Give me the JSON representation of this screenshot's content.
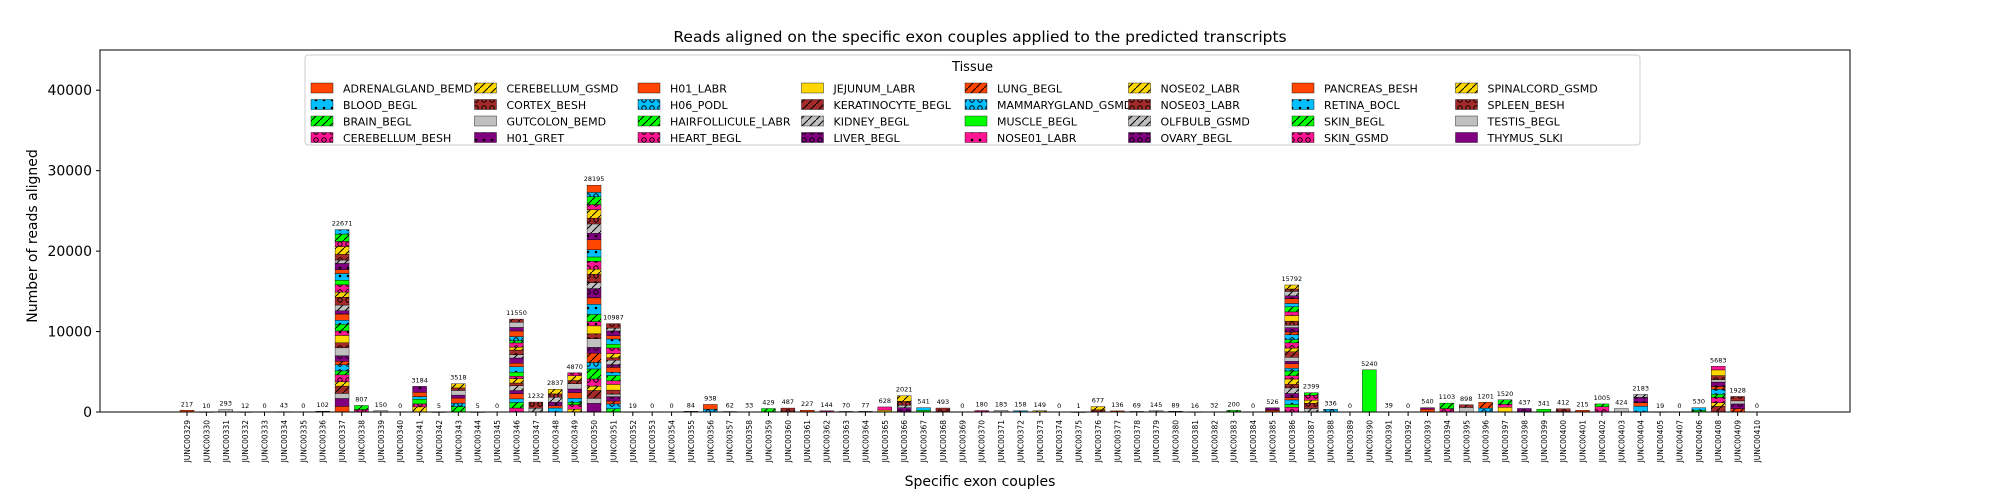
{
  "chart_data": {
    "type": "bar",
    "stacked": true,
    "title": "Reads aligned on the specific exon couples applied to the predicted transcripts",
    "xlabel": "Specific exon couples",
    "ylabel": "Number of reads aligned",
    "ylim": [
      0,
      45000
    ],
    "yticks": [
      0,
      10000,
      20000,
      30000,
      40000
    ],
    "grid": false,
    "legend": {
      "title": "Tissue",
      "placement": "top-center",
      "columns": 8
    },
    "series": [
      {
        "name": "ADRENALGLAND_BEMD",
        "color": "#ff4500",
        "hatch": "none"
      },
      {
        "name": "BLOOD_BEGL",
        "color": "#00bfff",
        "hatch": "dot"
      },
      {
        "name": "BRAIN_BEGL",
        "color": "#00ff00",
        "hatch": "slash"
      },
      {
        "name": "CEREBELLUM_BESH",
        "color": "#ff1493",
        "hatch": "ring"
      },
      {
        "name": "CEREBELLUM_GSMD",
        "color": "#ffd700",
        "hatch": "slash"
      },
      {
        "name": "CORTEX_BESH",
        "color": "#a52a2a",
        "hatch": "ring"
      },
      {
        "name": "GUTCOLON_BEMD",
        "color": "#c0c0c0",
        "hatch": "none"
      },
      {
        "name": "H01_GRET",
        "color": "#800080",
        "hatch": "dot"
      },
      {
        "name": "H01_LABR",
        "color": "#ff4500",
        "hatch": "none"
      },
      {
        "name": "H06_PODL",
        "color": "#00bfff",
        "hatch": "ring"
      },
      {
        "name": "HAIRFOLLICULE_LABR",
        "color": "#00ff00",
        "hatch": "slash"
      },
      {
        "name": "HEART_BEGL",
        "color": "#ff1493",
        "hatch": "ring"
      },
      {
        "name": "JEJUNUM_LABR",
        "color": "#ffd700",
        "hatch": "none"
      },
      {
        "name": "KERATINOCYTE_BEGL",
        "color": "#a52a2a",
        "hatch": "slash"
      },
      {
        "name": "KIDNEY_BEGL",
        "color": "#c0c0c0",
        "hatch": "slash"
      },
      {
        "name": "LIVER_BEGL",
        "color": "#800080",
        "hatch": "ring"
      },
      {
        "name": "LUNG_BEGL",
        "color": "#ff4500",
        "hatch": "slash"
      },
      {
        "name": "MAMMARYGLAND_GSMD",
        "color": "#00bfff",
        "hatch": "ring"
      },
      {
        "name": "MUSCLE_BEGL",
        "color": "#00ff00",
        "hatch": "none"
      },
      {
        "name": "NOSE01_LABR",
        "color": "#ff1493",
        "hatch": "dot"
      },
      {
        "name": "NOSE02_LABR",
        "color": "#ffd700",
        "hatch": "slash"
      },
      {
        "name": "NOSE03_LABR",
        "color": "#a52a2a",
        "hatch": "ring"
      },
      {
        "name": "OLFBULB_GSMD",
        "color": "#c0c0c0",
        "hatch": "slash"
      },
      {
        "name": "OVARY_BEGL",
        "color": "#800080",
        "hatch": "ring"
      },
      {
        "name": "PANCREAS_BESH",
        "color": "#ff4500",
        "hatch": "none"
      },
      {
        "name": "RETINA_BOCL",
        "color": "#00bfff",
        "hatch": "dot"
      },
      {
        "name": "SKIN_BEGL",
        "color": "#00ff00",
        "hatch": "slash"
      },
      {
        "name": "SKIN_GSMD",
        "color": "#ff1493",
        "hatch": "ring"
      },
      {
        "name": "SPINALCORD_GSMD",
        "color": "#ffd700",
        "hatch": "slash"
      },
      {
        "name": "SPLEEN_BESH",
        "color": "#a52a2a",
        "hatch": "ring"
      },
      {
        "name": "TESTIS_BEGL",
        "color": "#c0c0c0",
        "hatch": "none"
      },
      {
        "name": "THYMUS_SLKI",
        "color": "#800080",
        "hatch": "none"
      }
    ],
    "bars": [
      {
        "category": "JUNC00329",
        "total": 217
      },
      {
        "category": "JUNC00330",
        "total": 10
      },
      {
        "category": "JUNC00331",
        "total": 293
      },
      {
        "category": "JUNC00332",
        "total": 12
      },
      {
        "category": "JUNC00333",
        "total": 0
      },
      {
        "category": "JUNC00334",
        "total": 43
      },
      {
        "category": "JUNC00335",
        "total": 0
      },
      {
        "category": "JUNC00336",
        "total": 102
      },
      {
        "category": "JUNC00337",
        "total": 22671
      },
      {
        "category": "JUNC00338",
        "total": 807
      },
      {
        "category": "JUNC00339",
        "total": 150
      },
      {
        "category": "JUNC00340",
        "total": 0
      },
      {
        "category": "JUNC00341",
        "total": 3184
      },
      {
        "category": "JUNC00342",
        "total": 5
      },
      {
        "category": "JUNC00343",
        "total": 3518
      },
      {
        "category": "JUNC00344",
        "total": 5
      },
      {
        "category": "JUNC00345",
        "total": 0
      },
      {
        "category": "JUNC00346",
        "total": 11550
      },
      {
        "category": "JUNC00347",
        "total": 1232
      },
      {
        "category": "JUNC00348",
        "total": 2837
      },
      {
        "category": "JUNC00349",
        "total": 4870
      },
      {
        "category": "JUNC00350",
        "total": 28195
      },
      {
        "category": "JUNC00351",
        "total": 10987
      },
      {
        "category": "JUNC00352",
        "total": 19
      },
      {
        "category": "JUNC00353",
        "total": 0
      },
      {
        "category": "JUNC00354",
        "total": 0
      },
      {
        "category": "JUNC00355",
        "total": 84
      },
      {
        "category": "JUNC00356",
        "total": 938
      },
      {
        "category": "JUNC00357",
        "total": 62
      },
      {
        "category": "JUNC00358",
        "total": 33
      },
      {
        "category": "JUNC00359",
        "total": 429
      },
      {
        "category": "JUNC00360",
        "total": 487
      },
      {
        "category": "JUNC00361",
        "total": 227
      },
      {
        "category": "JUNC00362",
        "total": 144
      },
      {
        "category": "JUNC00363",
        "total": 70
      },
      {
        "category": "JUNC00364",
        "total": 77
      },
      {
        "category": "JUNC00365",
        "total": 628
      },
      {
        "category": "JUNC00366",
        "total": 2021
      },
      {
        "category": "JUNC00367",
        "total": 541
      },
      {
        "category": "JUNC00368",
        "total": 493
      },
      {
        "category": "JUNC00369",
        "total": 0
      },
      {
        "category": "JUNC00370",
        "total": 180
      },
      {
        "category": "JUNC00371",
        "total": 183
      },
      {
        "category": "JUNC00372",
        "total": 158
      },
      {
        "category": "JUNC00373",
        "total": 149
      },
      {
        "category": "JUNC00374",
        "total": 0
      },
      {
        "category": "JUNC00375",
        "total": 1
      },
      {
        "category": "JUNC00376",
        "total": 677
      },
      {
        "category": "JUNC00377",
        "total": 136
      },
      {
        "category": "JUNC00378",
        "total": 69
      },
      {
        "category": "JUNC00379",
        "total": 145
      },
      {
        "category": "JUNC00380",
        "total": 89
      },
      {
        "category": "JUNC00381",
        "total": 16
      },
      {
        "category": "JUNC00382",
        "total": 32
      },
      {
        "category": "JUNC00383",
        "total": 200
      },
      {
        "category": "JUNC00384",
        "total": 0
      },
      {
        "category": "JUNC00385",
        "total": 526
      },
      {
        "category": "JUNC00386",
        "total": 15792
      },
      {
        "category": "JUNC00387",
        "total": 2399
      },
      {
        "category": "JUNC00388",
        "total": 336
      },
      {
        "category": "JUNC00389",
        "total": 0
      },
      {
        "category": "JUNC00390",
        "total": 5240,
        "dominant": "MUSCLE_BEGL"
      },
      {
        "category": "JUNC00391",
        "total": 39
      },
      {
        "category": "JUNC00392",
        "total": 0
      },
      {
        "category": "JUNC00393",
        "total": 540
      },
      {
        "category": "JUNC00394",
        "total": 1103
      },
      {
        "category": "JUNC00395",
        "total": 898
      },
      {
        "category": "JUNC00396",
        "total": 1201
      },
      {
        "category": "JUNC00397",
        "total": 1520
      },
      {
        "category": "JUNC00398",
        "total": 437
      },
      {
        "category": "JUNC00399",
        "total": 341
      },
      {
        "category": "JUNC00400",
        "total": 412
      },
      {
        "category": "JUNC00401",
        "total": 215
      },
      {
        "category": "JUNC00402",
        "total": 1005
      },
      {
        "category": "JUNC00403",
        "total": 424
      },
      {
        "category": "JUNC00404",
        "total": 2183
      },
      {
        "category": "JUNC00405",
        "total": 19
      },
      {
        "category": "JUNC00407",
        "total": 0
      },
      {
        "category": "JUNC00406",
        "total": 530
      },
      {
        "category": "JUNC00408",
        "total": 5683
      },
      {
        "category": "JUNC00409",
        "total": 1928
      },
      {
        "category": "JUNC00410",
        "total": 0
      }
    ]
  }
}
